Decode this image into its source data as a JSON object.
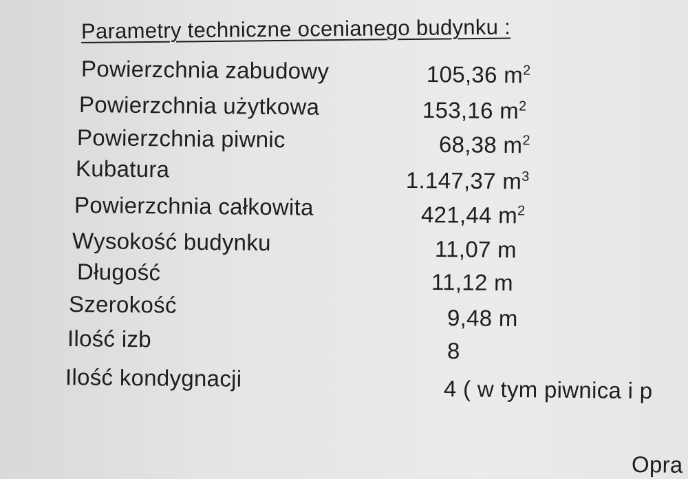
{
  "title": "Parametry techniczne ocenianego budynku :",
  "rows": [
    {
      "label": "Powierzchnia zabudowy",
      "value": "105,36 m",
      "sup": "2"
    },
    {
      "label": "Powierzchnia  użytkowa",
      "value": "153,16 m",
      "sup": "2"
    },
    {
      "label": "Powierzchnia piwnic",
      "value": "68,38 m",
      "sup": "2"
    },
    {
      "label": "Kubatura",
      "value": "1.147,37 m",
      "sup": "3"
    },
    {
      "label": "Powierzchnia całkowita",
      "value": "421,44 m",
      "sup": "2"
    },
    {
      "label": "Wysokość budynku",
      "value": "11,07 m"
    },
    {
      "label": "Długość",
      "value": "11,12 m"
    },
    {
      "label": "Szerokość",
      "value": "9,48 m"
    },
    {
      "label": "Ilość izb",
      "value": "8"
    },
    {
      "label": "Ilość kondygnacji",
      "value": "4 ( w tym piwnica i p"
    }
  ],
  "footer_fragment": "Opra"
}
